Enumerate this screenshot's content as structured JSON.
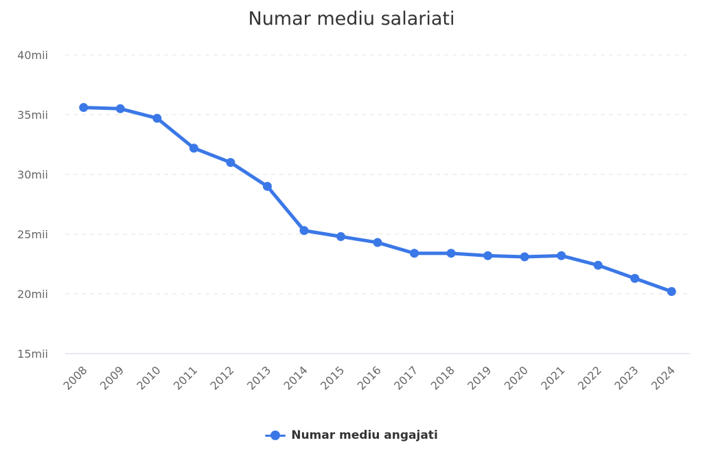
{
  "chart_data": {
    "type": "line",
    "title": "Numar mediu salariati",
    "xlabel": "",
    "ylabel": "",
    "categories": [
      "2008",
      "2009",
      "2010",
      "2011",
      "2012",
      "2013",
      "2014",
      "2015",
      "2016",
      "2017",
      "2018",
      "2019",
      "2020",
      "2021",
      "2022",
      "2023",
      "2024"
    ],
    "series": [
      {
        "name": "Numar mediu angajati",
        "values": [
          35.6,
          35.5,
          34.7,
          32.2,
          31.0,
          29.0,
          25.3,
          24.8,
          24.3,
          23.4,
          23.4,
          23.2,
          23.1,
          23.2,
          22.4,
          21.3,
          20.2
        ],
        "color": "#3b78e7"
      }
    ],
    "ylim": [
      15,
      40
    ],
    "yticks": [
      15,
      20,
      25,
      30,
      35,
      40
    ],
    "ytick_labels": [
      "15mii",
      "20mii",
      "25mii",
      "30mii",
      "35mii",
      "40mii"
    ],
    "grid": true,
    "legend_position": "bottom"
  }
}
